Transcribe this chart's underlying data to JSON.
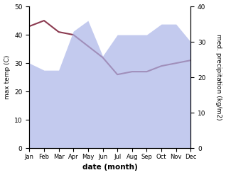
{
  "months": [
    "Jan",
    "Feb",
    "Mar",
    "Apr",
    "May",
    "Jun",
    "Jul",
    "Aug",
    "Sep",
    "Oct",
    "Nov",
    "Dec"
  ],
  "temp_max": [
    43,
    45,
    41,
    40,
    36,
    32,
    26,
    27,
    27,
    29,
    30,
    31
  ],
  "precipitation": [
    24,
    22,
    22,
    33,
    36,
    26,
    32,
    32,
    32,
    35,
    35,
    30
  ],
  "temp_color": "#8B3A50",
  "precip_color": "#aab4e8",
  "temp_ylim": [
    0,
    50
  ],
  "precip_ylim": [
    0,
    40
  ],
  "temp_yticks": [
    0,
    10,
    20,
    30,
    40,
    50
  ],
  "precip_yticks": [
    0,
    10,
    20,
    30,
    40
  ],
  "xlabel": "date (month)",
  "ylabel_left": "max temp (C)",
  "ylabel_right": "med. precipitation (kg/m2)",
  "bg_color": "#ffffff"
}
